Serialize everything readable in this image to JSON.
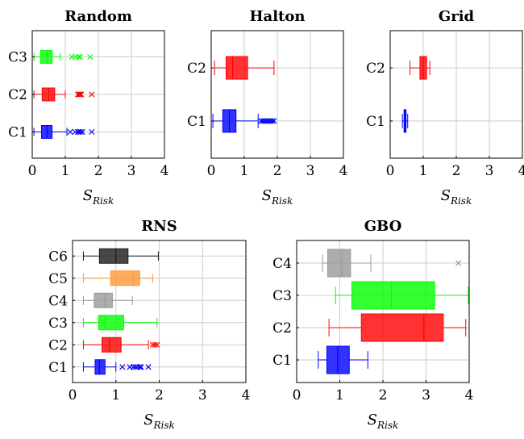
{
  "chart_data": [
    {
      "type": "boxplot",
      "title": "Random",
      "xlabel": "S_Risk",
      "xlabel_main": "S",
      "xlabel_sub": "Risk",
      "xlim": [
        0,
        4
      ],
      "xticks": [
        "0",
        "1",
        "2",
        "3",
        "4"
      ],
      "grid": true,
      "series": [
        {
          "name": "C1",
          "color": "#0000ff",
          "whisker_low": 0.05,
          "q1": 0.28,
          "median": 0.45,
          "q3": 0.6,
          "whisker_high": 1.05,
          "outliers": [
            1.15,
            1.3,
            1.38,
            1.42,
            1.47,
            1.52,
            1.8
          ]
        },
        {
          "name": "C2",
          "color": "#ff0000",
          "whisker_low": 0.05,
          "q1": 0.3,
          "median": 0.5,
          "q3": 0.68,
          "whisker_high": 1.0,
          "outliers": [
            1.38,
            1.42,
            1.45,
            1.48,
            1.8
          ]
        },
        {
          "name": "C3",
          "color": "#00ff00",
          "whisker_low": 0.05,
          "q1": 0.25,
          "median": 0.45,
          "q3": 0.6,
          "whisker_high": 0.85,
          "outliers": [
            1.2,
            1.3,
            1.4,
            1.45,
            1.75
          ]
        }
      ]
    },
    {
      "type": "boxplot",
      "title": "Halton",
      "xlabel": "S_Risk",
      "xlabel_main": "S",
      "xlabel_sub": "Risk",
      "xlim": [
        0,
        4
      ],
      "xticks": [
        "0",
        "1",
        "2",
        "3",
        "4"
      ],
      "grid": true,
      "series": [
        {
          "name": "C1",
          "color": "#0000ff",
          "whisker_low": 0.05,
          "q1": 0.35,
          "median": 0.55,
          "q3": 0.75,
          "whisker_high": 1.42,
          "outliers": [
            1.5,
            1.55,
            1.6,
            1.65,
            1.7,
            1.75,
            1.8,
            1.85,
            1.9
          ]
        },
        {
          "name": "C2",
          "color": "#ff0000",
          "whisker_low": 0.1,
          "q1": 0.45,
          "median": 0.65,
          "q3": 1.1,
          "whisker_high": 1.9,
          "outliers": []
        }
      ]
    },
    {
      "type": "boxplot",
      "title": "Grid",
      "xlabel": "S_Risk",
      "xlabel_main": "S",
      "xlabel_sub": "Risk",
      "xlim": [
        0,
        4
      ],
      "xticks": [
        "0",
        "1",
        "2",
        "3",
        "4"
      ],
      "grid": true,
      "series": [
        {
          "name": "C1",
          "color": "#0000ff",
          "whisker_low": 0.37,
          "q1": 0.42,
          "median": 0.45,
          "q3": 0.48,
          "whisker_high": 0.53,
          "outliers": []
        },
        {
          "name": "C2",
          "color": "#ff0000",
          "whisker_low": 0.6,
          "q1": 0.9,
          "median": 1.0,
          "q3": 1.1,
          "whisker_high": 1.2,
          "outliers": []
        }
      ]
    },
    {
      "type": "boxplot",
      "title": "RNS",
      "xlabel": "S_Risk",
      "xlabel_main": "S",
      "xlabel_sub": "Risk",
      "xlim": [
        0,
        4
      ],
      "xticks": [
        "0",
        "1",
        "2",
        "3",
        "4"
      ],
      "grid": true,
      "series": [
        {
          "name": "C1",
          "color": "#0000ff",
          "whisker_low": 0.25,
          "q1": 0.52,
          "median": 0.62,
          "q3": 0.75,
          "whisker_high": 1.0,
          "outliers": [
            1.15,
            1.32,
            1.4,
            1.45,
            1.5,
            1.55,
            1.58,
            1.75
          ]
        },
        {
          "name": "C2",
          "color": "#ff0000",
          "whisker_low": 0.25,
          "q1": 0.68,
          "median": 0.85,
          "q3": 1.12,
          "whisker_high": 1.75,
          "outliers": [
            1.85,
            1.9,
            1.95
          ]
        },
        {
          "name": "C3",
          "color": "#00ff00",
          "whisker_low": 0.25,
          "q1": 0.6,
          "median": 0.75,
          "q3": 1.18,
          "whisker_high": 1.95,
          "outliers": []
        },
        {
          "name": "C4",
          "color": "#999999",
          "whisker_low": 0.25,
          "q1": 0.5,
          "median": 0.75,
          "q3": 0.92,
          "whisker_high": 1.38,
          "outliers": []
        },
        {
          "name": "C5",
          "color": "#ff9933",
          "whisker_low": 0.25,
          "q1": 0.88,
          "median": 1.4,
          "q3": 1.55,
          "whisker_high": 1.85,
          "outliers": []
        },
        {
          "name": "C6",
          "color": "#1a1a1a",
          "whisker_low": 0.25,
          "q1": 0.62,
          "median": 1.0,
          "q3": 1.28,
          "whisker_high": 1.98,
          "outliers": []
        }
      ]
    },
    {
      "type": "boxplot",
      "title": "GBO",
      "xlabel": "S_Risk",
      "xlabel_main": "S",
      "xlabel_sub": "Risk",
      "xlim": [
        0,
        4
      ],
      "xticks": [
        "0",
        "1",
        "2",
        "3",
        "4"
      ],
      "grid": true,
      "series": [
        {
          "name": "C1",
          "color": "#0000ff",
          "whisker_low": 0.5,
          "q1": 0.7,
          "median": 0.95,
          "q3": 1.22,
          "whisker_high": 1.65,
          "outliers": []
        },
        {
          "name": "C2",
          "color": "#ff0000",
          "whisker_low": 0.75,
          "q1": 1.5,
          "median": 2.95,
          "q3": 3.4,
          "whisker_high": 3.92,
          "outliers": []
        },
        {
          "name": "C3",
          "color": "#00ff00",
          "whisker_low": 0.9,
          "q1": 1.28,
          "median": 2.2,
          "q3": 3.2,
          "whisker_high": 3.98,
          "outliers": []
        },
        {
          "name": "C4",
          "color": "#999999",
          "whisker_low": 0.6,
          "q1": 0.72,
          "median": 1.05,
          "q3": 1.25,
          "whisker_high": 1.72,
          "outliers": [
            3.75
          ]
        }
      ]
    }
  ]
}
